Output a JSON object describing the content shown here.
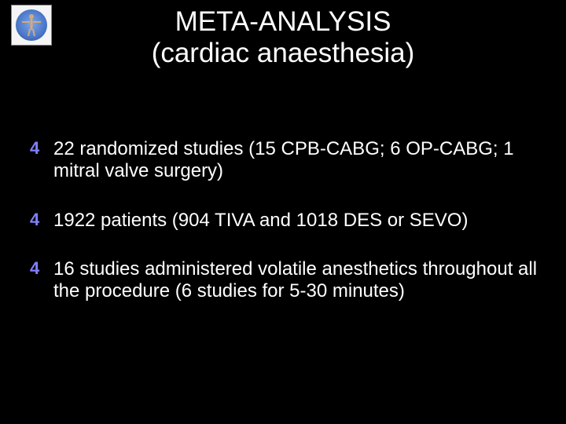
{
  "slide": {
    "background_color": "#000000",
    "text_color": "#ffffff",
    "bullet_color": "#8080ff",
    "font_family": "Comic Sans MS",
    "title_fontsize": 35,
    "body_fontsize": 24
  },
  "title": {
    "line1": "META-ANALYSIS",
    "line2": "(cardiac anaesthesia)"
  },
  "bullets": [
    {
      "text": "22 randomized studies (15 CPB-CABG; 6 OP-CABG; 1 mitral valve surgery)"
    },
    {
      "text": "1922 patients (904 TIVA and 1018 DES or SEVO)"
    },
    {
      "text": "16 studies administered volatile anesthetics throughout all the procedure (6 studies for 5-30 minutes)"
    }
  ],
  "logo": {
    "description": "vitruvian-man-circle",
    "bg_color": "#f5f5f5",
    "circle_gradient": [
      "#7aa7e8",
      "#2a4a90"
    ],
    "figure_color": "#d9a879"
  }
}
